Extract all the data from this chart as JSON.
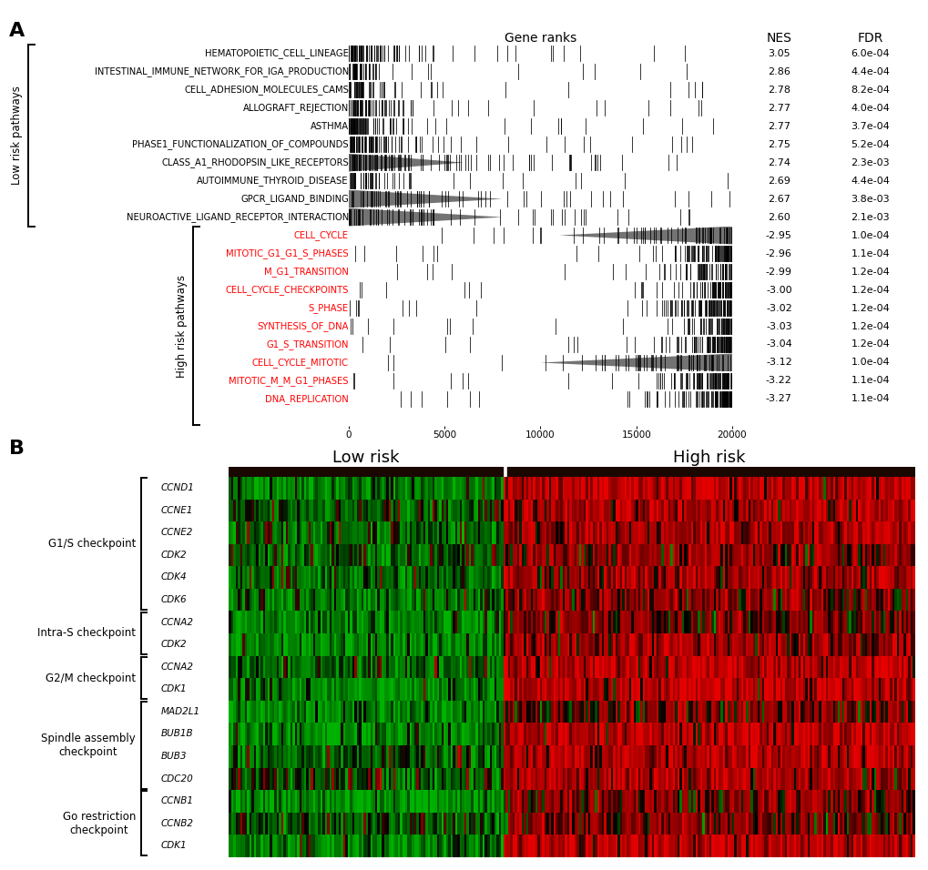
{
  "panel_A": {
    "low_risk_pathways": [
      {
        "name": "HEMATOPOIETIC_CELL_LINEAGE",
        "nes": 3.05,
        "fdr": "6.0e-04"
      },
      {
        "name": "INTESTINAL_IMMUNE_NETWORK_FOR_IGA_PRODUCTION",
        "nes": 2.86,
        "fdr": "4.4e-04"
      },
      {
        "name": "CELL_ADHESION_MOLECULES_CAMS",
        "nes": 2.78,
        "fdr": "8.2e-04"
      },
      {
        "name": "ALLOGRAFT_REJECTION",
        "nes": 2.77,
        "fdr": "4.0e-04"
      },
      {
        "name": "ASTHMA",
        "nes": 2.77,
        "fdr": "3.7e-04"
      },
      {
        "name": "PHASE1_FUNCTIONALIZATION_OF_COMPOUNDS",
        "nes": 2.75,
        "fdr": "5.2e-04"
      },
      {
        "name": "CLASS_A1_RHODOPSIN_LIKE_RECEPTORS",
        "nes": 2.74,
        "fdr": "2.3e-03"
      },
      {
        "name": "AUTOIMMUNE_THYROID_DISEASE",
        "nes": 2.69,
        "fdr": "4.4e-04"
      },
      {
        "name": "GPCR_LIGAND_BINDING",
        "nes": 2.67,
        "fdr": "3.8e-03"
      },
      {
        "name": "NEUROACTIVE_LIGAND_RECEPTOR_INTERACTION",
        "nes": 2.6,
        "fdr": "2.1e-03"
      }
    ],
    "high_risk_pathways": [
      {
        "name": "CELL_CYCLE",
        "nes": -2.95,
        "fdr": "1.0e-04"
      },
      {
        "name": "MITOTIC_G1_G1_S_PHASES",
        "nes": -2.96,
        "fdr": "1.1e-04"
      },
      {
        "name": "M_G1_TRANSITION",
        "nes": -2.99,
        "fdr": "1.2e-04"
      },
      {
        "name": "CELL_CYCLE_CHECKPOINTS",
        "nes": -3.0,
        "fdr": "1.2e-04"
      },
      {
        "name": "S_PHASE",
        "nes": -3.02,
        "fdr": "1.2e-04"
      },
      {
        "name": "SYNTHESIS_OF_DNA",
        "nes": -3.03,
        "fdr": "1.2e-04"
      },
      {
        "name": "G1_S_TRANSITION",
        "nes": -3.04,
        "fdr": "1.2e-04"
      },
      {
        "name": "CELL_CYCLE_MITOTIC",
        "nes": -3.12,
        "fdr": "1.0e-04"
      },
      {
        "name": "MITOTIC_M_M_G1_PHASES",
        "nes": -3.22,
        "fdr": "1.1e-04"
      },
      {
        "name": "DNA_REPLICATION",
        "nes": -3.27,
        "fdr": "1.1e-04"
      }
    ],
    "xmax": 20000,
    "xticks": [
      0,
      5000,
      10000,
      15000,
      20000
    ],
    "xtick_labels": [
      "0",
      "5000",
      "10000",
      "15000",
      "20000"
    ]
  },
  "panel_B": {
    "groups": [
      {
        "label": "G1/S checkpoint",
        "genes": [
          "CCND1",
          "CCNE1",
          "CCNE2",
          "CDK2",
          "CDK4",
          "CDK6"
        ]
      },
      {
        "label": "Intra-S checkpoint",
        "genes": [
          "CCNA2",
          "CDK2"
        ]
      },
      {
        "label": "G2/M checkpoint",
        "genes": [
          "CCNA2",
          "CDK1"
        ]
      },
      {
        "label": "Spindle assembly\ncheckpoint",
        "genes": [
          "MAD2L1",
          "BUB1B",
          "BUB3",
          "CDC20"
        ]
      },
      {
        "label": "Go restriction\ncheckpoint",
        "genes": [
          "CCNB1",
          "CCNB2",
          "CDK1"
        ]
      }
    ],
    "n_low": 120,
    "n_high": 180,
    "low_risk_label": "Low risk",
    "high_risk_label": "High risk",
    "header_color": "#1a0800"
  }
}
